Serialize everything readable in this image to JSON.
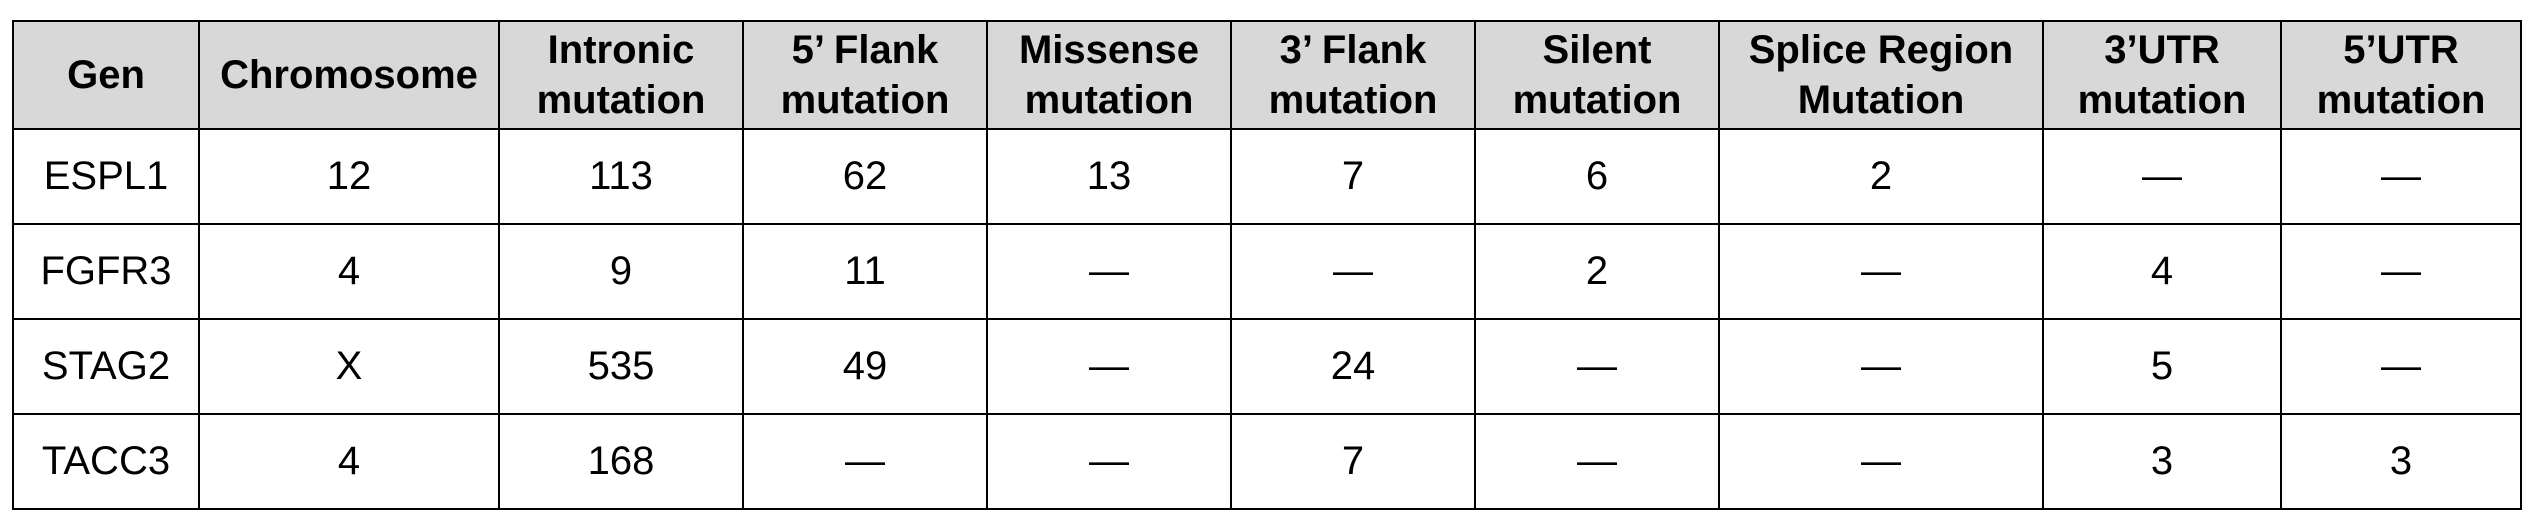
{
  "table": {
    "headers": [
      "Gen",
      "Chromosome",
      "Intronic mutation",
      "5’ Flank mutation",
      "Missense mutation",
      "3’ Flank mutation",
      "Silent mutation",
      "Splice Region Mutation",
      "3’UTR mutation",
      "5’UTR mutation"
    ],
    "rows": [
      [
        "ESPL1",
        "12",
        "113",
        "62",
        "13",
        "7",
        "6",
        "2",
        "—",
        "—"
      ],
      [
        "FGFR3",
        "4",
        "9",
        "11",
        "—",
        "—",
        "2",
        "—",
        "4",
        "—"
      ],
      [
        "STAG2",
        "X",
        "535",
        "49",
        "—",
        "24",
        "—",
        "—",
        "5",
        "—"
      ],
      [
        "TACC3",
        "4",
        "168",
        "—",
        "—",
        "7",
        "—",
        "—",
        "3",
        "3"
      ]
    ]
  }
}
